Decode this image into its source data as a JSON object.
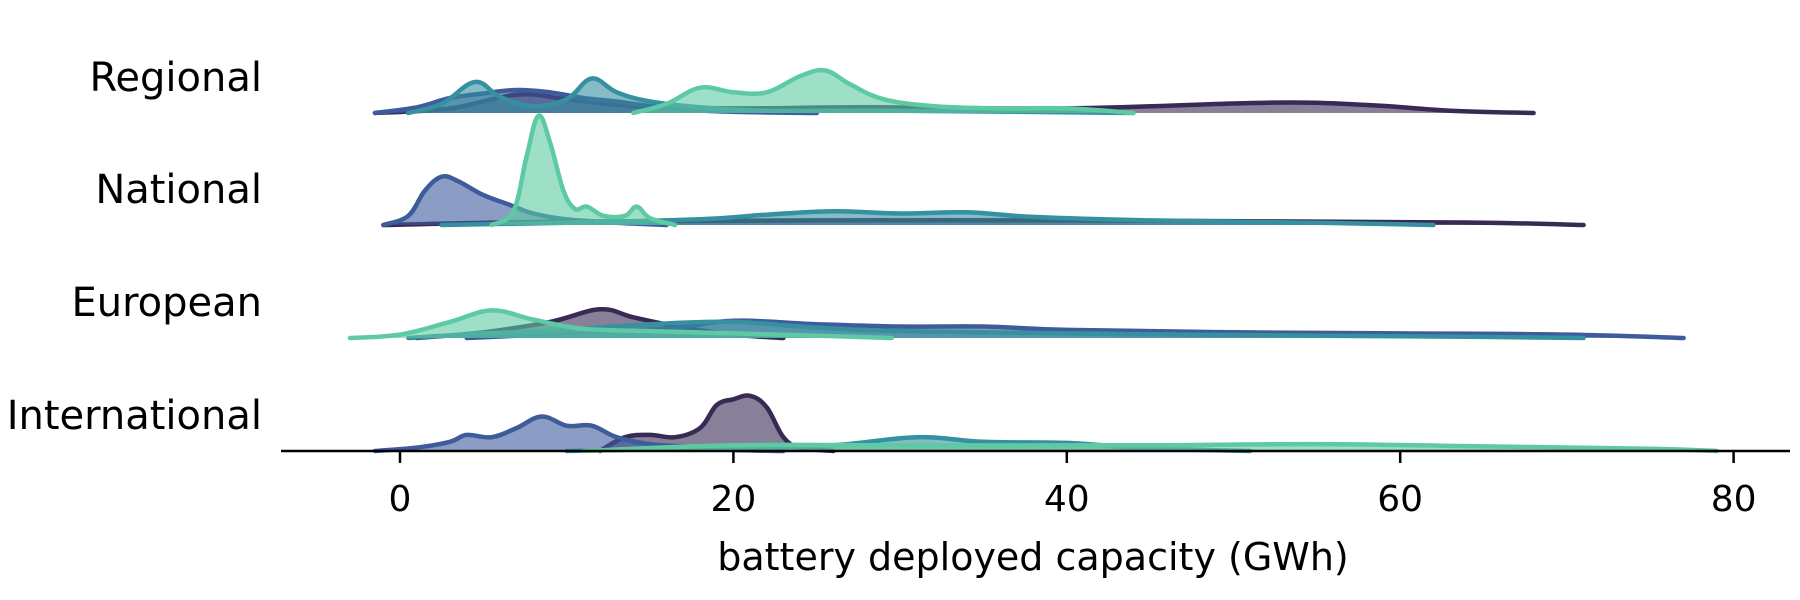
{
  "chart_data": {
    "type": "area",
    "subtype": "ridgeline (stacked kernel density)",
    "xlabel": "battery deployed capacity (GWh)",
    "xlim": [
      -7,
      83
    ],
    "x_ticks": [
      0,
      20,
      40,
      60,
      80
    ],
    "grid": false,
    "legend": "none",
    "colors": {
      "series_a": "#382a54",
      "series_b": "#3e5b9c",
      "series_c": "#3590a0",
      "series_d": "#5ecaa3",
      "axis": "#000000"
    },
    "rows": [
      {
        "label": "Regional",
        "series": [
          {
            "color_key": "series_a",
            "fill_opacity": 0.6,
            "points": [
              [
                -1.5,
                0
              ],
              [
                3,
                0.04
              ],
              [
                7,
                0.16
              ],
              [
                10,
                0.12
              ],
              [
                14,
                0.06
              ],
              [
                20,
                0.04
              ],
              [
                28,
                0.05
              ],
              [
                40,
                0.04
              ],
              [
                52,
                0.09
              ],
              [
                58,
                0.07
              ],
              [
                63,
                0.02
              ],
              [
                68,
                0
              ]
            ]
          },
          {
            "color_key": "series_b",
            "fill_opacity": 0.6,
            "points": [
              [
                -1.5,
                0
              ],
              [
                1,
                0.05
              ],
              [
                3,
                0.13
              ],
              [
                5,
                0.17
              ],
              [
                7,
                0.2
              ],
              [
                9,
                0.18
              ],
              [
                11,
                0.13
              ],
              [
                13,
                0.1
              ],
              [
                15,
                0.06
              ],
              [
                17,
                0.03
              ],
              [
                20,
                0.01
              ],
              [
                25,
                0
              ]
            ]
          },
          {
            "color_key": "series_c",
            "fill_opacity": 0.6,
            "points": [
              [
                0.5,
                0
              ],
              [
                2.5,
                0.08
              ],
              [
                4.5,
                0.27
              ],
              [
                6,
                0.14
              ],
              [
                8,
                0.06
              ],
              [
                10,
                0.12
              ],
              [
                11.5,
                0.3
              ],
              [
                13,
                0.18
              ],
              [
                15,
                0.1
              ],
              [
                18,
                0.05
              ],
              [
                22,
                0.02
              ],
              [
                30,
                0.02
              ],
              [
                44,
                0
              ]
            ]
          },
          {
            "color_key": "series_d",
            "fill_opacity": 0.6,
            "points": [
              [
                14,
                0
              ],
              [
                16,
                0.08
              ],
              [
                18,
                0.22
              ],
              [
                20,
                0.18
              ],
              [
                22,
                0.18
              ],
              [
                24,
                0.32
              ],
              [
                25.5,
                0.37
              ],
              [
                27,
                0.25
              ],
              [
                29,
                0.12
              ],
              [
                32,
                0.06
              ],
              [
                36,
                0.04
              ],
              [
                40,
                0.04
              ],
              [
                44,
                0
              ]
            ]
          }
        ]
      },
      {
        "label": "National",
        "series": [
          {
            "color_key": "series_a",
            "fill_opacity": 0.6,
            "points": [
              [
                -1,
                0
              ],
              [
                10,
                0.03
              ],
              [
                25,
                0.04
              ],
              [
                40,
                0.04
              ],
              [
                55,
                0.03
              ],
              [
                65,
                0.02
              ],
              [
                71,
                0
              ]
            ]
          },
          {
            "color_key": "series_b",
            "fill_opacity": 0.6,
            "points": [
              [
                -1,
                0
              ],
              [
                0.5,
                0.08
              ],
              [
                1.5,
                0.3
              ],
              [
                2.5,
                0.42
              ],
              [
                3.5,
                0.38
              ],
              [
                5,
                0.26
              ],
              [
                6.5,
                0.18
              ],
              [
                8,
                0.1
              ],
              [
                10,
                0.05
              ],
              [
                13,
                0.02
              ],
              [
                16,
                0
              ]
            ]
          },
          {
            "color_key": "series_c",
            "fill_opacity": 0.6,
            "points": [
              [
                2.5,
                0
              ],
              [
                10,
                0.02
              ],
              [
                18,
                0.05
              ],
              [
                22,
                0.09
              ],
              [
                26,
                0.12
              ],
              [
                30,
                0.1
              ],
              [
                34,
                0.11
              ],
              [
                38,
                0.07
              ],
              [
                45,
                0.04
              ],
              [
                55,
                0.02
              ],
              [
                62,
                0
              ]
            ]
          },
          {
            "color_key": "series_d",
            "fill_opacity": 0.6,
            "points": [
              [
                5.5,
                0
              ],
              [
                6.8,
                0.12
              ],
              [
                7.6,
                0.6
              ],
              [
                8.3,
                0.95
              ],
              [
                9,
                0.72
              ],
              [
                9.8,
                0.3
              ],
              [
                10.5,
                0.14
              ],
              [
                11.2,
                0.16
              ],
              [
                12.2,
                0.08
              ],
              [
                13.5,
                0.08
              ],
              [
                14.2,
                0.16
              ],
              [
                15,
                0.06
              ],
              [
                16.5,
                0
              ]
            ]
          }
        ]
      },
      {
        "label": "European",
        "series": [
          {
            "color_key": "series_a",
            "fill_opacity": 0.6,
            "points": [
              [
                1,
                0
              ],
              [
                5,
                0.05
              ],
              [
                9,
                0.14
              ],
              [
                12,
                0.25
              ],
              [
                14,
                0.18
              ],
              [
                17,
                0.09
              ],
              [
                20,
                0.03
              ],
              [
                23,
                0
              ]
            ]
          },
          {
            "color_key": "series_b",
            "fill_opacity": 0.6,
            "points": [
              [
                4,
                0
              ],
              [
                10,
                0.04
              ],
              [
                16,
                0.08
              ],
              [
                20,
                0.15
              ],
              [
                25,
                0.12
              ],
              [
                30,
                0.1
              ],
              [
                35,
                0.1
              ],
              [
                40,
                0.07
              ],
              [
                50,
                0.05
              ],
              [
                60,
                0.04
              ],
              [
                70,
                0.03
              ],
              [
                77,
                0
              ]
            ]
          },
          {
            "color_key": "series_c",
            "fill_opacity": 0.6,
            "points": [
              [
                0.5,
                0
              ],
              [
                5,
                0.04
              ],
              [
                10,
                0.07
              ],
              [
                15,
                0.12
              ],
              [
                20,
                0.14
              ],
              [
                25,
                0.09
              ],
              [
                30,
                0.06
              ],
              [
                40,
                0.04
              ],
              [
                55,
                0.02
              ],
              [
                65,
                0.01
              ],
              [
                71,
                0
              ]
            ]
          },
          {
            "color_key": "series_d",
            "fill_opacity": 0.6,
            "points": [
              [
                -3,
                0
              ],
              [
                0,
                0.03
              ],
              [
                3,
                0.14
              ],
              [
                5.5,
                0.24
              ],
              [
                8,
                0.16
              ],
              [
                11,
                0.08
              ],
              [
                15,
                0.06
              ],
              [
                20,
                0.04
              ],
              [
                25,
                0.02
              ],
              [
                29.5,
                0
              ]
            ]
          }
        ]
      },
      {
        "label": "International",
        "series": [
          {
            "color_key": "series_a",
            "fill_opacity": 0.6,
            "points": [
              [
                12,
                0
              ],
              [
                13.5,
                0.12
              ],
              [
                15,
                0.14
              ],
              [
                16.5,
                0.12
              ],
              [
                18,
                0.2
              ],
              [
                19,
                0.4
              ],
              [
                20,
                0.45
              ],
              [
                21,
                0.48
              ],
              [
                22,
                0.38
              ],
              [
                23,
                0.12
              ],
              [
                24,
                0.03
              ],
              [
                26,
                0
              ]
            ]
          },
          {
            "color_key": "series_b",
            "fill_opacity": 0.6,
            "points": [
              [
                -1.5,
                0
              ],
              [
                1,
                0.03
              ],
              [
                3,
                0.08
              ],
              [
                4,
                0.14
              ],
              [
                5.5,
                0.12
              ],
              [
                7,
                0.2
              ],
              [
                8.5,
                0.3
              ],
              [
                10,
                0.22
              ],
              [
                11.5,
                0.22
              ],
              [
                13,
                0.12
              ],
              [
                15,
                0.06
              ],
              [
                17,
                0.04
              ],
              [
                20,
                0.01
              ],
              [
                23,
                0
              ]
            ]
          },
          {
            "color_key": "series_c",
            "fill_opacity": 0.6,
            "points": [
              [
                10,
                0
              ],
              [
                20,
                0.03
              ],
              [
                26,
                0.05
              ],
              [
                31,
                0.12
              ],
              [
                35,
                0.08
              ],
              [
                40,
                0.07
              ],
              [
                44,
                0.03
              ],
              [
                48,
                0.01
              ],
              [
                51,
                0
              ]
            ]
          },
          {
            "color_key": "series_d",
            "fill_opacity": 0.6,
            "points": [
              [
                11,
                0
              ],
              [
                20,
                0.05
              ],
              [
                30,
                0.05
              ],
              [
                45,
                0.05
              ],
              [
                55,
                0.06
              ],
              [
                65,
                0.04
              ],
              [
                75,
                0.02
              ],
              [
                79,
                0
              ]
            ]
          }
        ]
      }
    ]
  }
}
